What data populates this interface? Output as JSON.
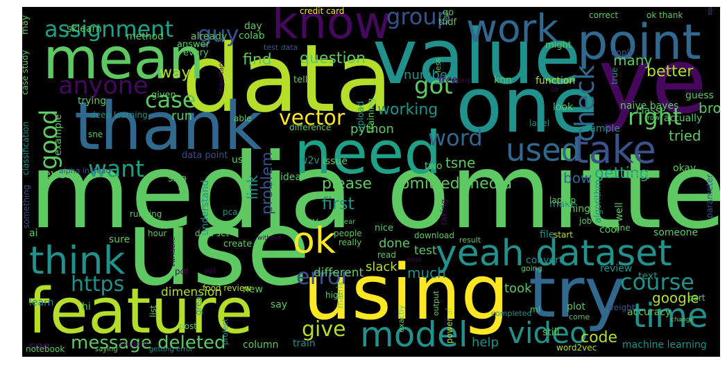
{
  "wordcloud": {
    "background": "#000000",
    "palette": {
      "purple": "#46085c",
      "indigo": "#3b518b",
      "blue": "#31688e",
      "teal": "#21918c",
      "turquoise": "#1fa187",
      "green": "#5ec962",
      "lime": "#b5de2b",
      "yellow": "#fde725",
      "lightgreen": "#4ac16d"
    },
    "words": [
      {
        "text": "media omitted",
        "color": "green"
      },
      {
        "text": "use",
        "color": "green"
      },
      {
        "text": "data",
        "color": "lime"
      },
      {
        "text": "ye",
        "color": "purple"
      },
      {
        "text": "one",
        "color": "teal"
      },
      {
        "text": "value",
        "color": "teal"
      },
      {
        "text": "using",
        "color": "yellow"
      },
      {
        "text": "try",
        "color": "blue"
      },
      {
        "text": "feature",
        "color": "lime"
      },
      {
        "text": "thank",
        "color": "blue"
      },
      {
        "text": "need",
        "color": "turquoise"
      },
      {
        "text": "mean",
        "color": "green"
      },
      {
        "text": "know",
        "color": "purple"
      },
      {
        "text": "point",
        "color": "blue"
      },
      {
        "text": "yeah",
        "color": "teal"
      },
      {
        "text": "dataset",
        "color": "teal"
      },
      {
        "text": "take",
        "color": "indigo"
      },
      {
        "text": "think",
        "color": "teal"
      },
      {
        "text": "work",
        "color": "blue"
      },
      {
        "text": "model",
        "color": "teal"
      },
      {
        "text": "time",
        "color": "teal"
      },
      {
        "text": "ok",
        "color": "yellow"
      },
      {
        "text": "used",
        "color": "blue"
      },
      {
        "text": "video",
        "color": "teal"
      },
      {
        "text": "assignment",
        "color": "turquoise"
      },
      {
        "text": "guy",
        "color": "indigo"
      },
      {
        "text": "group",
        "color": "indigo"
      },
      {
        "text": "anyone",
        "color": "purple"
      },
      {
        "text": "good",
        "color": "green"
      },
      {
        "text": "case",
        "color": "green"
      },
      {
        "text": "check",
        "color": "blue"
      },
      {
        "text": "right",
        "color": "green"
      },
      {
        "text": "want",
        "color": "turquoise"
      },
      {
        "text": "error",
        "color": "indigo"
      },
      {
        "text": "vector",
        "color": "yellow"
      },
      {
        "text": "word",
        "color": "blue"
      },
      {
        "text": "course",
        "color": "teal"
      },
      {
        "text": "got",
        "color": "green"
      },
      {
        "text": "https",
        "color": "teal"
      },
      {
        "text": "give",
        "color": "lime"
      },
      {
        "text": "message deleted",
        "color": "green"
      },
      {
        "text": "find",
        "color": "green"
      },
      {
        "text": "question",
        "color": "green"
      },
      {
        "text": "better",
        "color": "lime"
      },
      {
        "text": "way",
        "color": "lime"
      },
      {
        "text": "working",
        "color": "teal"
      },
      {
        "text": "please",
        "color": "green"
      },
      {
        "text": "omitted media",
        "color": "green"
      },
      {
        "text": "getting",
        "color": "turquoise"
      },
      {
        "text": "tried",
        "color": "green"
      },
      {
        "text": "first",
        "color": "teal"
      },
      {
        "text": "code",
        "color": "lime"
      },
      {
        "text": "google",
        "color": "lime"
      },
      {
        "text": "python",
        "color": "green"
      },
      {
        "text": "tsne",
        "color": "green"
      },
      {
        "text": "bow",
        "color": "blue"
      },
      {
        "text": "problem",
        "color": "indigo"
      },
      {
        "text": "link",
        "color": "teal"
      },
      {
        "text": "done",
        "color": "green"
      },
      {
        "text": "much",
        "color": "teal"
      },
      {
        "text": "many",
        "color": "green"
      },
      {
        "text": "bro",
        "color": "green"
      },
      {
        "text": "number",
        "color": "teal"
      },
      {
        "text": "run",
        "color": "green"
      },
      {
        "text": "even",
        "color": "green"
      },
      {
        "text": "help",
        "color": "teal"
      },
      {
        "text": "took",
        "color": "green"
      },
      {
        "text": "dimension",
        "color": "lime"
      },
      {
        "text": "different",
        "color": "green"
      },
      {
        "text": "slack",
        "color": "lime"
      },
      {
        "text": "test",
        "color": "green"
      },
      {
        "text": "see",
        "color": "purple"
      },
      {
        "text": "machine learning",
        "color": "teal"
      },
      {
        "text": "accuracy",
        "color": "green"
      },
      {
        "text": "knn",
        "color": "green"
      },
      {
        "text": "function",
        "color": "lime"
      },
      {
        "text": "free",
        "color": "purple"
      },
      {
        "text": "naive bayes",
        "color": "green"
      },
      {
        "text": "guess",
        "color": "green"
      },
      {
        "text": "actually",
        "color": "green"
      },
      {
        "text": "class",
        "color": "green"
      },
      {
        "text": "sample",
        "color": "teal"
      },
      {
        "text": "look",
        "color": "green"
      },
      {
        "text": "okay",
        "color": "green"
      },
      {
        "text": "best",
        "color": "green"
      },
      {
        "text": "make",
        "color": "teal"
      },
      {
        "text": "well",
        "color": "green"
      },
      {
        "text": "cool",
        "color": "green"
      },
      {
        "text": "thing",
        "color": "green"
      },
      {
        "text": "file",
        "color": "teal"
      },
      {
        "text": "someone",
        "color": "green"
      },
      {
        "text": "convert",
        "color": "teal"
      },
      {
        "text": "review",
        "color": "teal"
      },
      {
        "text": "text",
        "color": "teal"
      },
      {
        "text": "plot",
        "color": "green"
      },
      {
        "text": "still",
        "color": "green"
      },
      {
        "text": "column",
        "color": "green"
      },
      {
        "text": "train",
        "color": "teal"
      },
      {
        "text": "say",
        "color": "green"
      },
      {
        "text": "new",
        "color": "green"
      },
      {
        "text": "hi",
        "color": "green"
      },
      {
        "text": "learn",
        "color": "teal"
      },
      {
        "text": "trying",
        "color": "green"
      },
      {
        "text": "example",
        "color": "green"
      },
      {
        "text": "hey",
        "color": "green"
      },
      {
        "text": "understand",
        "color": "teal"
      },
      {
        "text": "sure",
        "color": "green"
      },
      {
        "text": "lot",
        "color": "green"
      },
      {
        "text": "size",
        "color": "green"
      },
      {
        "text": "us",
        "color": "green"
      },
      {
        "text": "idea",
        "color": "green"
      },
      {
        "text": "w2v",
        "color": "teal"
      },
      {
        "text": "issue",
        "color": "green"
      },
      {
        "text": "two",
        "color": "green"
      },
      {
        "text": "data point",
        "color": "indigo"
      },
      {
        "text": "already",
        "color": "green"
      },
      {
        "text": "method",
        "color": "green"
      },
      {
        "text": "sklearn",
        "color": "green"
      },
      {
        "text": "colab",
        "color": "green"
      },
      {
        "text": "day",
        "color": "green"
      },
      {
        "text": "answer",
        "color": "green"
      },
      {
        "text": "every",
        "color": "green"
      },
      {
        "text": "might",
        "color": "green"
      },
      {
        "text": "upload",
        "color": "teal"
      },
      {
        "text": "training",
        "color": "green"
      },
      {
        "text": "credit card",
        "color": "yellow"
      },
      {
        "text": "go",
        "color": "green"
      },
      {
        "text": "tfidf",
        "color": "green"
      },
      {
        "text": "less",
        "color": "green"
      },
      {
        "text": "correct",
        "color": "green"
      },
      {
        "text": "ok thank",
        "color": "green"
      },
      {
        "text": "sparse matrix",
        "color": "indigo"
      },
      {
        "text": "tell",
        "color": "green"
      },
      {
        "text": "sir",
        "color": "purple"
      },
      {
        "text": "apply",
        "color": "indigo"
      },
      {
        "text": "true",
        "color": "teal"
      },
      {
        "text": "row",
        "color": "green"
      },
      {
        "text": "label",
        "color": "teal"
      },
      {
        "text": "given",
        "color": "green"
      },
      {
        "text": "case study",
        "color": "green"
      },
      {
        "text": "classification",
        "color": "teal"
      },
      {
        "text": "deep learning",
        "color": "teal"
      },
      {
        "text": "able",
        "color": "green"
      },
      {
        "text": "difference",
        "color": "green"
      },
      {
        "text": "important",
        "color": "purple"
      },
      {
        "text": "alpha instead",
        "color": "indigo"
      },
      {
        "text": "something",
        "color": "indigo"
      },
      {
        "text": "ai",
        "color": "green"
      },
      {
        "text": "running",
        "color": "green"
      },
      {
        "text": "pca",
        "color": "teal"
      },
      {
        "text": "nice",
        "color": "green"
      },
      {
        "text": "laptop",
        "color": "green"
      },
      {
        "text": "parameter",
        "color": "indigo"
      },
      {
        "text": "algorithm",
        "color": "teal"
      },
      {
        "text": "job",
        "color": "green"
      },
      {
        "text": "line",
        "color": "green"
      },
      {
        "text": "start",
        "color": "lime"
      },
      {
        "text": "hour",
        "color": "green"
      },
      {
        "text": "data set",
        "color": "green"
      },
      {
        "text": "people",
        "color": "green"
      },
      {
        "text": "really",
        "color": "green"
      },
      {
        "text": "download",
        "color": "green"
      },
      {
        "text": "result",
        "color": "green"
      },
      {
        "text": "create",
        "color": "green"
      },
      {
        "text": "read",
        "color": "green"
      },
      {
        "text": "taking",
        "color": "purple"
      },
      {
        "text": "year",
        "color": "green"
      },
      {
        "text": "variable",
        "color": "purple"
      },
      {
        "text": "pdf",
        "color": "purple"
      },
      {
        "text": "add",
        "color": "purple"
      },
      {
        "text": "without",
        "color": "purple"
      },
      {
        "text": "html",
        "color": "purple"
      },
      {
        "text": "food review",
        "color": "lime"
      },
      {
        "text": "high",
        "color": "green"
      },
      {
        "text": "ml",
        "color": "green"
      },
      {
        "text": "weight",
        "color": "indigo"
      },
      {
        "text": "come",
        "color": "green"
      },
      {
        "text": "change",
        "color": "green"
      },
      {
        "text": "part",
        "color": "green"
      },
      {
        "text": "going",
        "color": "green"
      },
      {
        "text": "completed",
        "color": "teal"
      },
      {
        "text": "list",
        "color": "green"
      },
      {
        "text": "post",
        "color": "green"
      },
      {
        "text": "great",
        "color": "teal"
      },
      {
        "text": "project",
        "color": "teal"
      },
      {
        "text": "matrix",
        "color": "green"
      },
      {
        "text": "exactly",
        "color": "green"
      },
      {
        "text": "output",
        "color": "green"
      },
      {
        "text": "power ai",
        "color": "lime"
      },
      {
        "text": "notebook",
        "color": "green"
      },
      {
        "text": "saying",
        "color": "green"
      },
      {
        "text": "student",
        "color": "purple"
      },
      {
        "text": "getting error",
        "color": "teal"
      },
      {
        "text": "word2vec",
        "color": "lime"
      },
      {
        "text": "may",
        "color": "green"
      },
      {
        "text": "sne",
        "color": "green"
      },
      {
        "text": "wrong",
        "color": "purple"
      },
      {
        "text": "whole",
        "color": "purple"
      },
      {
        "text": "test data",
        "color": "indigo"
      }
    ]
  }
}
